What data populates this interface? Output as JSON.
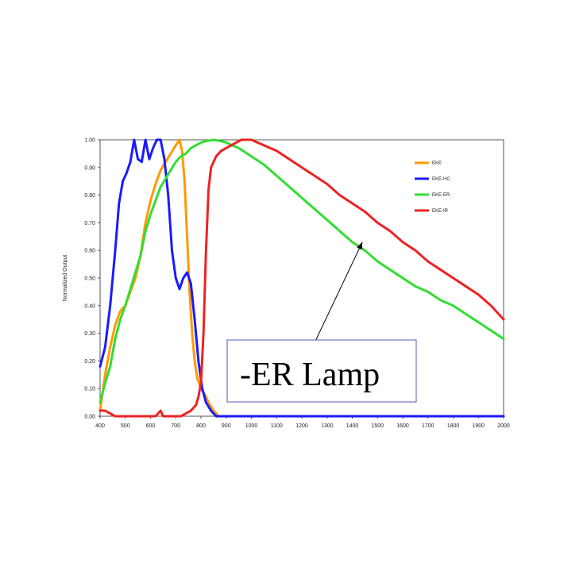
{
  "chart_data": {
    "type": "line",
    "title": "",
    "xlabel": "",
    "ylabel": "Normalized Output",
    "xlim": [
      400,
      2000
    ],
    "ylim": [
      0,
      1
    ],
    "x_ticks": [
      "400",
      "500",
      "600",
      "700",
      "800",
      "900",
      "1000",
      "1100",
      "1200",
      "1300",
      "1400",
      "1500",
      "1600",
      "1700",
      "1800",
      "1900",
      "2000"
    ],
    "y_ticks": [
      "0.00",
      "0.10",
      "0.20",
      "0.30",
      "0.40",
      "0.50",
      "0.60",
      "0.70",
      "0.80",
      "0.90",
      "1.00"
    ],
    "grid": false,
    "legend_position": "top-right",
    "series": [
      {
        "name": "EKE",
        "color": "#ff9900",
        "points": [
          [
            400,
            0.02
          ],
          [
            420,
            0.15
          ],
          [
            440,
            0.25
          ],
          [
            460,
            0.33
          ],
          [
            480,
            0.38
          ],
          [
            500,
            0.4
          ],
          [
            520,
            0.45
          ],
          [
            540,
            0.5
          ],
          [
            560,
            0.58
          ],
          [
            580,
            0.7
          ],
          [
            600,
            0.78
          ],
          [
            620,
            0.84
          ],
          [
            640,
            0.89
          ],
          [
            660,
            0.92
          ],
          [
            680,
            0.95
          ],
          [
            700,
            0.98
          ],
          [
            715,
            1.0
          ],
          [
            725,
            0.96
          ],
          [
            735,
            0.85
          ],
          [
            745,
            0.65
          ],
          [
            755,
            0.45
          ],
          [
            765,
            0.3
          ],
          [
            775,
            0.2
          ],
          [
            785,
            0.14
          ],
          [
            800,
            0.1
          ],
          [
            815,
            0.08
          ],
          [
            830,
            0.05
          ],
          [
            850,
            0.02
          ],
          [
            870,
            0.0
          ],
          [
            2000,
            0.0
          ]
        ]
      },
      {
        "name": "EKE-HC",
        "color": "#1a1aff",
        "points": [
          [
            400,
            0.18
          ],
          [
            420,
            0.25
          ],
          [
            440,
            0.4
          ],
          [
            460,
            0.6
          ],
          [
            475,
            0.77
          ],
          [
            490,
            0.85
          ],
          [
            505,
            0.88
          ],
          [
            520,
            0.92
          ],
          [
            535,
            1.0
          ],
          [
            550,
            0.93
          ],
          [
            565,
            0.92
          ],
          [
            580,
            1.0
          ],
          [
            595,
            0.93
          ],
          [
            610,
            0.97
          ],
          [
            625,
            1.0
          ],
          [
            640,
            1.0
          ],
          [
            655,
            0.93
          ],
          [
            670,
            0.8
          ],
          [
            685,
            0.6
          ],
          [
            700,
            0.5
          ],
          [
            715,
            0.46
          ],
          [
            730,
            0.5
          ],
          [
            745,
            0.52
          ],
          [
            760,
            0.48
          ],
          [
            775,
            0.35
          ],
          [
            790,
            0.2
          ],
          [
            805,
            0.1
          ],
          [
            820,
            0.05
          ],
          [
            840,
            0.02
          ],
          [
            860,
            0.0
          ],
          [
            2000,
            0.0
          ]
        ]
      },
      {
        "name": "EKE-ER",
        "color": "#33dd33",
        "points": [
          [
            400,
            0.05
          ],
          [
            420,
            0.12
          ],
          [
            440,
            0.18
          ],
          [
            460,
            0.28
          ],
          [
            480,
            0.35
          ],
          [
            500,
            0.4
          ],
          [
            520,
            0.46
          ],
          [
            540,
            0.52
          ],
          [
            560,
            0.58
          ],
          [
            580,
            0.67
          ],
          [
            600,
            0.73
          ],
          [
            620,
            0.78
          ],
          [
            640,
            0.83
          ],
          [
            660,
            0.86
          ],
          [
            680,
            0.89
          ],
          [
            700,
            0.92
          ],
          [
            720,
            0.94
          ],
          [
            740,
            0.95
          ],
          [
            760,
            0.97
          ],
          [
            780,
            0.98
          ],
          [
            800,
            0.99
          ],
          [
            820,
            0.995
          ],
          [
            850,
            1.0
          ],
          [
            880,
            0.995
          ],
          [
            900,
            0.99
          ],
          [
            950,
            0.97
          ],
          [
            1000,
            0.94
          ],
          [
            1050,
            0.91
          ],
          [
            1100,
            0.87
          ],
          [
            1150,
            0.83
          ],
          [
            1200,
            0.79
          ],
          [
            1250,
            0.75
          ],
          [
            1300,
            0.71
          ],
          [
            1350,
            0.67
          ],
          [
            1400,
            0.63
          ],
          [
            1450,
            0.6
          ],
          [
            1500,
            0.56
          ],
          [
            1550,
            0.53
          ],
          [
            1600,
            0.5
          ],
          [
            1650,
            0.47
          ],
          [
            1700,
            0.45
          ],
          [
            1750,
            0.42
          ],
          [
            1800,
            0.4
          ],
          [
            1850,
            0.37
          ],
          [
            1900,
            0.34
          ],
          [
            1950,
            0.31
          ],
          [
            2000,
            0.28
          ]
        ]
      },
      {
        "name": "EKE-IR",
        "color": "#ee2222",
        "points": [
          [
            400,
            0.02
          ],
          [
            420,
            0.02
          ],
          [
            440,
            0.01
          ],
          [
            460,
            0.0
          ],
          [
            500,
            0.0
          ],
          [
            600,
            0.0
          ],
          [
            620,
            0.0
          ],
          [
            640,
            0.02
          ],
          [
            650,
            0.0
          ],
          [
            700,
            0.0
          ],
          [
            720,
            0.0
          ],
          [
            740,
            0.01
          ],
          [
            760,
            0.02
          ],
          [
            780,
            0.04
          ],
          [
            790,
            0.07
          ],
          [
            800,
            0.12
          ],
          [
            810,
            0.3
          ],
          [
            820,
            0.6
          ],
          [
            830,
            0.82
          ],
          [
            840,
            0.9
          ],
          [
            860,
            0.94
          ],
          [
            880,
            0.96
          ],
          [
            900,
            0.97
          ],
          [
            920,
            0.98
          ],
          [
            940,
            0.99
          ],
          [
            960,
            1.0
          ],
          [
            1000,
            1.0
          ],
          [
            1050,
            0.98
          ],
          [
            1100,
            0.96
          ],
          [
            1150,
            0.93
          ],
          [
            1200,
            0.9
          ],
          [
            1250,
            0.87
          ],
          [
            1300,
            0.84
          ],
          [
            1350,
            0.8
          ],
          [
            1400,
            0.77
          ],
          [
            1450,
            0.74
          ],
          [
            1500,
            0.7
          ],
          [
            1550,
            0.67
          ],
          [
            1600,
            0.63
          ],
          [
            1650,
            0.6
          ],
          [
            1700,
            0.56
          ],
          [
            1750,
            0.53
          ],
          [
            1800,
            0.5
          ],
          [
            1850,
            0.47
          ],
          [
            1900,
            0.44
          ],
          [
            1950,
            0.4
          ],
          [
            2000,
            0.35
          ]
        ]
      }
    ],
    "annotations": [
      {
        "text": "-ER Lamp",
        "arrow_to": [
          1440,
          0.63
        ]
      }
    ]
  }
}
